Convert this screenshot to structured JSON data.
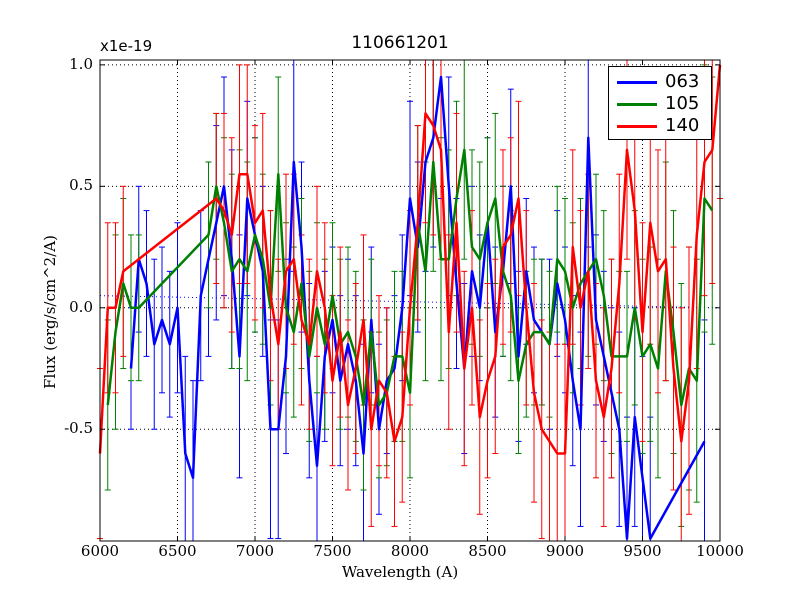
{
  "chart_data": {
    "type": "line",
    "title": "110661201",
    "exponent_label": "x1e-19",
    "xlabel": "Wavelength (A)",
    "ylabel": "Flux (erg/s/cm^2/A)",
    "xlim": [
      6000,
      10000
    ],
    "ylim": [
      -0.96,
      1.02
    ],
    "x_ticks": [
      6000,
      6500,
      7000,
      7500,
      8000,
      8500,
      9000,
      9500,
      10000
    ],
    "x_tick_labels": [
      "6000",
      "6500",
      "7000",
      "7500",
      "8000",
      "8500",
      "9000",
      "9500",
      "10000"
    ],
    "y_ticks": [
      1.0,
      0.5,
      0.0,
      -0.5
    ],
    "y_tick_labels": [
      "1.0",
      "0.5",
      "0.0",
      "-0.5"
    ],
    "grid": true,
    "legend_position": "top-right",
    "series": [
      {
        "name": "063",
        "color": "#0000ff",
        "x": [
          6200,
          6250,
          6300,
          6350,
          6400,
          6450,
          6500,
          6550,
          6600,
          6650,
          6700,
          6750,
          6800,
          6850,
          6900,
          6950,
          7000,
          7050,
          7100,
          7150,
          7200,
          7250,
          7300,
          7350,
          7400,
          7450,
          7500,
          7550,
          7600,
          7650,
          7700,
          7750,
          7800,
          7850,
          7900,
          7950,
          8000,
          8050,
          8100,
          8150,
          8200,
          8250,
          8300,
          8350,
          8400,
          8450,
          8500,
          8550,
          8600,
          8650,
          8700,
          8750,
          8800,
          8850,
          8900,
          8950,
          9000,
          9050,
          9100,
          9150,
          9200,
          9250,
          9300,
          9350,
          9400,
          9450,
          9500,
          9550,
          9900
        ],
        "y": [
          -0.25,
          0.2,
          0.1,
          -0.15,
          -0.05,
          -0.15,
          0.0,
          -0.6,
          -0.7,
          0.05,
          0.2,
          0.35,
          0.5,
          0.2,
          -0.2,
          0.45,
          0.3,
          0.15,
          -0.5,
          -0.5,
          -0.2,
          0.6,
          0.25,
          -0.3,
          -0.65,
          -0.2,
          -0.05,
          -0.3,
          -0.15,
          -0.3,
          -0.6,
          -0.05,
          -0.5,
          -0.3,
          -0.25,
          0.0,
          0.45,
          0.25,
          0.6,
          0.7,
          0.95,
          0.5,
          0.1,
          -0.25,
          0.15,
          0.0,
          0.35,
          -0.1,
          0.15,
          0.5,
          -0.2,
          0.15,
          -0.05,
          -0.1,
          -0.15,
          0.1,
          -0.05,
          -0.3,
          -0.5,
          0.7,
          -0.05,
          -0.2,
          -0.35,
          -0.5,
          -0.95,
          -0.45,
          -0.7,
          -0.95,
          -0.55
        ],
        "error_upper": [
          0.25,
          0.3,
          0.3,
          0.35,
          0.3,
          0.3,
          0.35,
          0.4,
          0.4,
          0.35,
          0.4,
          0.4,
          0.45,
          0.45,
          0.5,
          0.4,
          0.4,
          0.35,
          0.45,
          0.45,
          0.4,
          0.45,
          0.35,
          0.4,
          0.45,
          0.35,
          0.3,
          0.35,
          0.35,
          0.35,
          0.45,
          0.3,
          0.35,
          0.3,
          0.3,
          0.3,
          0.4,
          0.35,
          0.45,
          0.45,
          0.5,
          0.45,
          0.35,
          0.35,
          0.35,
          0.3,
          0.35,
          0.35,
          0.35,
          0.4,
          0.35,
          0.3,
          0.3,
          0.3,
          0.35,
          0.3,
          0.3,
          0.35,
          0.4,
          0.45,
          0.35,
          0.35,
          0.35,
          0.4,
          0.5,
          0.45,
          0.5,
          0.5,
          0.5
        ]
      },
      {
        "name": "105",
        "color": "#008000",
        "x": [
          6050,
          6100,
          6150,
          6200,
          6250,
          6700,
          6750,
          6800,
          6850,
          6900,
          6950,
          7000,
          7050,
          7100,
          7150,
          7200,
          7250,
          7300,
          7350,
          7400,
          7450,
          7500,
          7550,
          7600,
          7650,
          7700,
          7750,
          7800,
          7850,
          7900,
          7950,
          8000,
          8050,
          8100,
          8150,
          8200,
          8250,
          8300,
          8350,
          8400,
          8450,
          8500,
          8550,
          8600,
          8650,
          8700,
          8750,
          8800,
          8850,
          8900,
          8950,
          9000,
          9050,
          9100,
          9150,
          9200,
          9250,
          9300,
          9350,
          9400,
          9450,
          9500,
          9550,
          9600,
          9650,
          9700,
          9750,
          9800,
          9850,
          9900,
          9950
        ],
        "y": [
          -0.4,
          -0.1,
          0.1,
          0.0,
          0.0,
          0.3,
          0.5,
          0.35,
          0.15,
          0.2,
          0.15,
          0.3,
          0.2,
          0.0,
          0.55,
          0.0,
          -0.1,
          0.1,
          -0.2,
          0.0,
          -0.15,
          0.05,
          -0.15,
          -0.1,
          -0.2,
          -0.4,
          -0.1,
          -0.4,
          -0.35,
          -0.2,
          -0.2,
          -0.35,
          0.35,
          0.15,
          0.6,
          0.2,
          0.2,
          0.45,
          0.65,
          0.25,
          0.2,
          0.35,
          0.45,
          0.15,
          0.05,
          -0.3,
          -0.15,
          -0.1,
          -0.1,
          -0.15,
          0.2,
          0.15,
          0.0,
          0.1,
          0.15,
          0.2,
          0.05,
          -0.2,
          -0.2,
          -0.2,
          0.0,
          -0.2,
          -0.15,
          -0.25,
          0.15,
          -0.1,
          -0.4,
          -0.25,
          -0.3,
          0.45,
          0.4
        ],
        "error_upper": [
          0.35,
          0.4,
          0.35,
          0.3,
          0.3,
          0.3,
          0.3,
          0.35,
          0.4,
          0.45,
          0.45,
          0.4,
          0.35,
          0.4,
          0.4,
          0.35,
          0.35,
          0.35,
          0.35,
          0.35,
          0.35,
          0.3,
          0.35,
          0.35,
          0.35,
          0.35,
          0.3,
          0.3,
          0.3,
          0.35,
          0.35,
          0.35,
          0.4,
          0.45,
          0.45,
          0.5,
          0.45,
          0.4,
          0.45,
          0.4,
          0.4,
          0.35,
          0.35,
          0.35,
          0.35,
          0.3,
          0.3,
          0.3,
          0.3,
          0.3,
          0.3,
          0.3,
          0.35,
          0.35,
          0.35,
          0.35,
          0.35,
          0.4,
          0.35,
          0.35,
          0.4,
          0.4,
          0.4,
          0.45,
          0.45,
          0.5,
          0.5,
          0.5,
          0.5,
          0.55,
          0.55
        ]
      },
      {
        "name": "140",
        "color": "#ff0000",
        "x": [
          6000,
          6050,
          6100,
          6150,
          6750,
          6800,
          6850,
          6900,
          6950,
          7000,
          7050,
          7100,
          7150,
          7200,
          7250,
          7300,
          7350,
          7400,
          7450,
          7500,
          7550,
          7600,
          7650,
          7700,
          7750,
          7800,
          7850,
          7900,
          7950,
          8000,
          8050,
          8100,
          8150,
          8200,
          8250,
          8300,
          8350,
          8400,
          8450,
          8500,
          8550,
          8600,
          8650,
          8700,
          8750,
          8800,
          8850,
          8900,
          8950,
          9000,
          9050,
          9100,
          9150,
          9200,
          9250,
          9300,
          9350,
          9400,
          9450,
          9500,
          9550,
          9600,
          9650,
          9700,
          9750,
          9800,
          9850,
          9900,
          9950,
          10000
        ],
        "y": [
          -0.6,
          0.0,
          0.0,
          0.15,
          0.45,
          0.4,
          0.3,
          0.55,
          0.55,
          0.35,
          0.4,
          0.05,
          -0.15,
          0.15,
          0.2,
          -0.05,
          -0.15,
          0.15,
          0.0,
          -0.3,
          -0.1,
          -0.4,
          -0.25,
          -0.05,
          -0.5,
          -0.3,
          -0.35,
          -0.55,
          -0.45,
          0.0,
          0.35,
          0.8,
          0.75,
          0.65,
          -0.1,
          0.35,
          -0.25,
          0.0,
          -0.45,
          -0.3,
          -0.2,
          0.25,
          0.3,
          0.45,
          0.0,
          -0.35,
          -0.5,
          -0.55,
          -0.6,
          -0.6,
          0.25,
          0.0,
          0.15,
          -0.3,
          -0.45,
          -0.25,
          0.1,
          0.65,
          0.4,
          -0.1,
          0.35,
          0.15,
          0.2,
          -0.25,
          -0.55,
          -0.3,
          0.3,
          0.6,
          0.65,
          1.0
        ],
        "error_upper": [
          0.35,
          0.35,
          0.35,
          0.35,
          0.35,
          0.4,
          0.4,
          0.45,
          0.45,
          0.4,
          0.4,
          0.35,
          0.35,
          0.4,
          0.35,
          0.35,
          0.35,
          0.35,
          0.35,
          0.35,
          0.35,
          0.35,
          0.35,
          0.35,
          0.4,
          0.35,
          0.35,
          0.35,
          0.35,
          0.4,
          0.4,
          0.45,
          0.45,
          0.45,
          0.4,
          0.45,
          0.4,
          0.4,
          0.4,
          0.4,
          0.4,
          0.4,
          0.4,
          0.4,
          0.4,
          0.45,
          0.45,
          0.45,
          0.45,
          0.45,
          0.4,
          0.4,
          0.4,
          0.4,
          0.45,
          0.45,
          0.45,
          0.45,
          0.45,
          0.45,
          0.5,
          0.5,
          0.5,
          0.5,
          0.55,
          0.55,
          0.55,
          0.55,
          0.55,
          0.55
        ]
      }
    ],
    "reference_line": {
      "style": "dotted",
      "color": "#0000ff",
      "x": [
        6000,
        10000
      ],
      "y": [
        0.05,
        0.0
      ]
    }
  }
}
